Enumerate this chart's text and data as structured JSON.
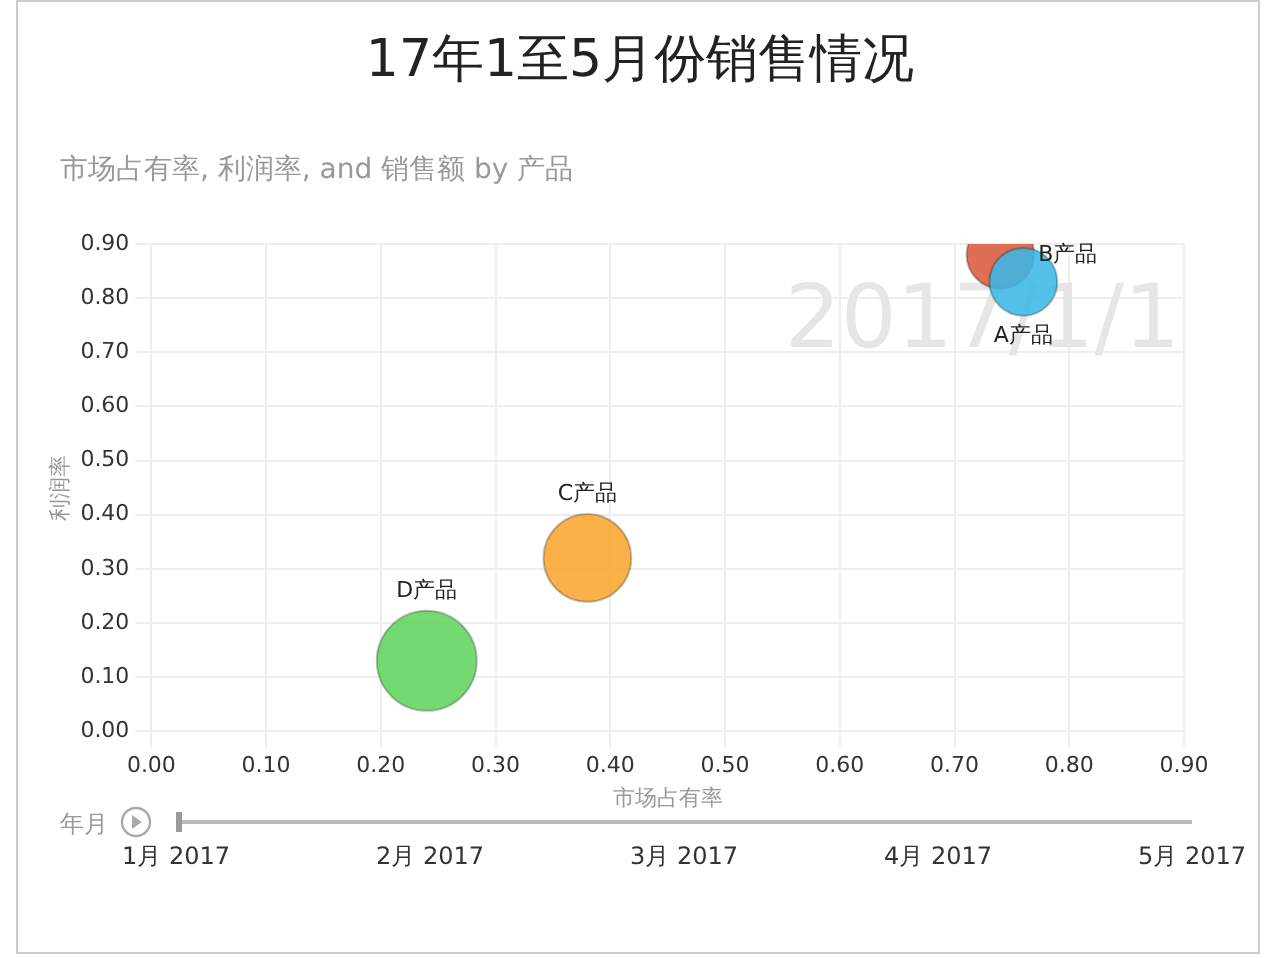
{
  "chart_data": {
    "type": "bubble",
    "title": "17年1至5月份销售情况",
    "subtitle": "市场占有率, 利润率, and 销售额 by 产品",
    "xlabel": "市场占有率",
    "ylabel": "利润率",
    "series": [
      {
        "name": "A产品",
        "color": "#3ab8e8",
        "x": [
          0.76
        ],
        "values": [
          0.83
        ],
        "sizes": [
          0.46
        ]
      },
      {
        "name": "B产品",
        "color": "#d9593a",
        "x": [
          0.74
        ],
        "values": [
          0.88
        ],
        "sizes": [
          0.46
        ]
      },
      {
        "name": "C产品",
        "color": "#f9a52c",
        "x": [
          0.38
        ],
        "values": [
          0.32
        ],
        "sizes": [
          0.77
        ]
      },
      {
        "name": "D产品",
        "color": "#5fd35a",
        "x": [
          0.24
        ],
        "values": [
          0.13
        ],
        "sizes": [
          1
        ]
      }
    ],
    "xlim": [
      0,
      0.9
    ],
    "xticks": [
      {
        "value": 0,
        "label": "0.00"
      },
      {
        "value": 0.1,
        "label": "0.10"
      },
      {
        "value": 0.2,
        "label": "0.20"
      },
      {
        "value": 0.3,
        "label": "0.30"
      },
      {
        "value": 0.4,
        "label": "0.40"
      },
      {
        "value": 0.5,
        "label": "0.50"
      },
      {
        "value": 0.6,
        "label": "0.60"
      },
      {
        "value": 0.7,
        "label": "0.70"
      },
      {
        "value": 0.8,
        "label": "0.80"
      },
      {
        "value": 0.9,
        "label": "0.90"
      }
    ],
    "ylim": [
      0,
      0.9
    ],
    "yticks": [
      {
        "value": 0,
        "label": "0.00"
      },
      {
        "value": 0.1,
        "label": "0.10"
      },
      {
        "value": 0.2,
        "label": "0.20"
      },
      {
        "value": 0.3,
        "label": "0.30"
      },
      {
        "value": 0.4,
        "label": "0.40"
      },
      {
        "value": 0.5,
        "label": "0.50"
      },
      {
        "value": 0.6,
        "label": "0.60"
      },
      {
        "value": 0.7,
        "label": "0.70"
      },
      {
        "value": 0.8,
        "label": "0.80"
      },
      {
        "value": 0.9,
        "label": "0.90"
      }
    ],
    "grid": true,
    "legend": false,
    "annotations": [
      "2017/1/1",
      "年月",
      "1月 2017",
      "2月 2017",
      "3月 2017",
      "4月 2017",
      "5月 2017"
    ]
  }
}
